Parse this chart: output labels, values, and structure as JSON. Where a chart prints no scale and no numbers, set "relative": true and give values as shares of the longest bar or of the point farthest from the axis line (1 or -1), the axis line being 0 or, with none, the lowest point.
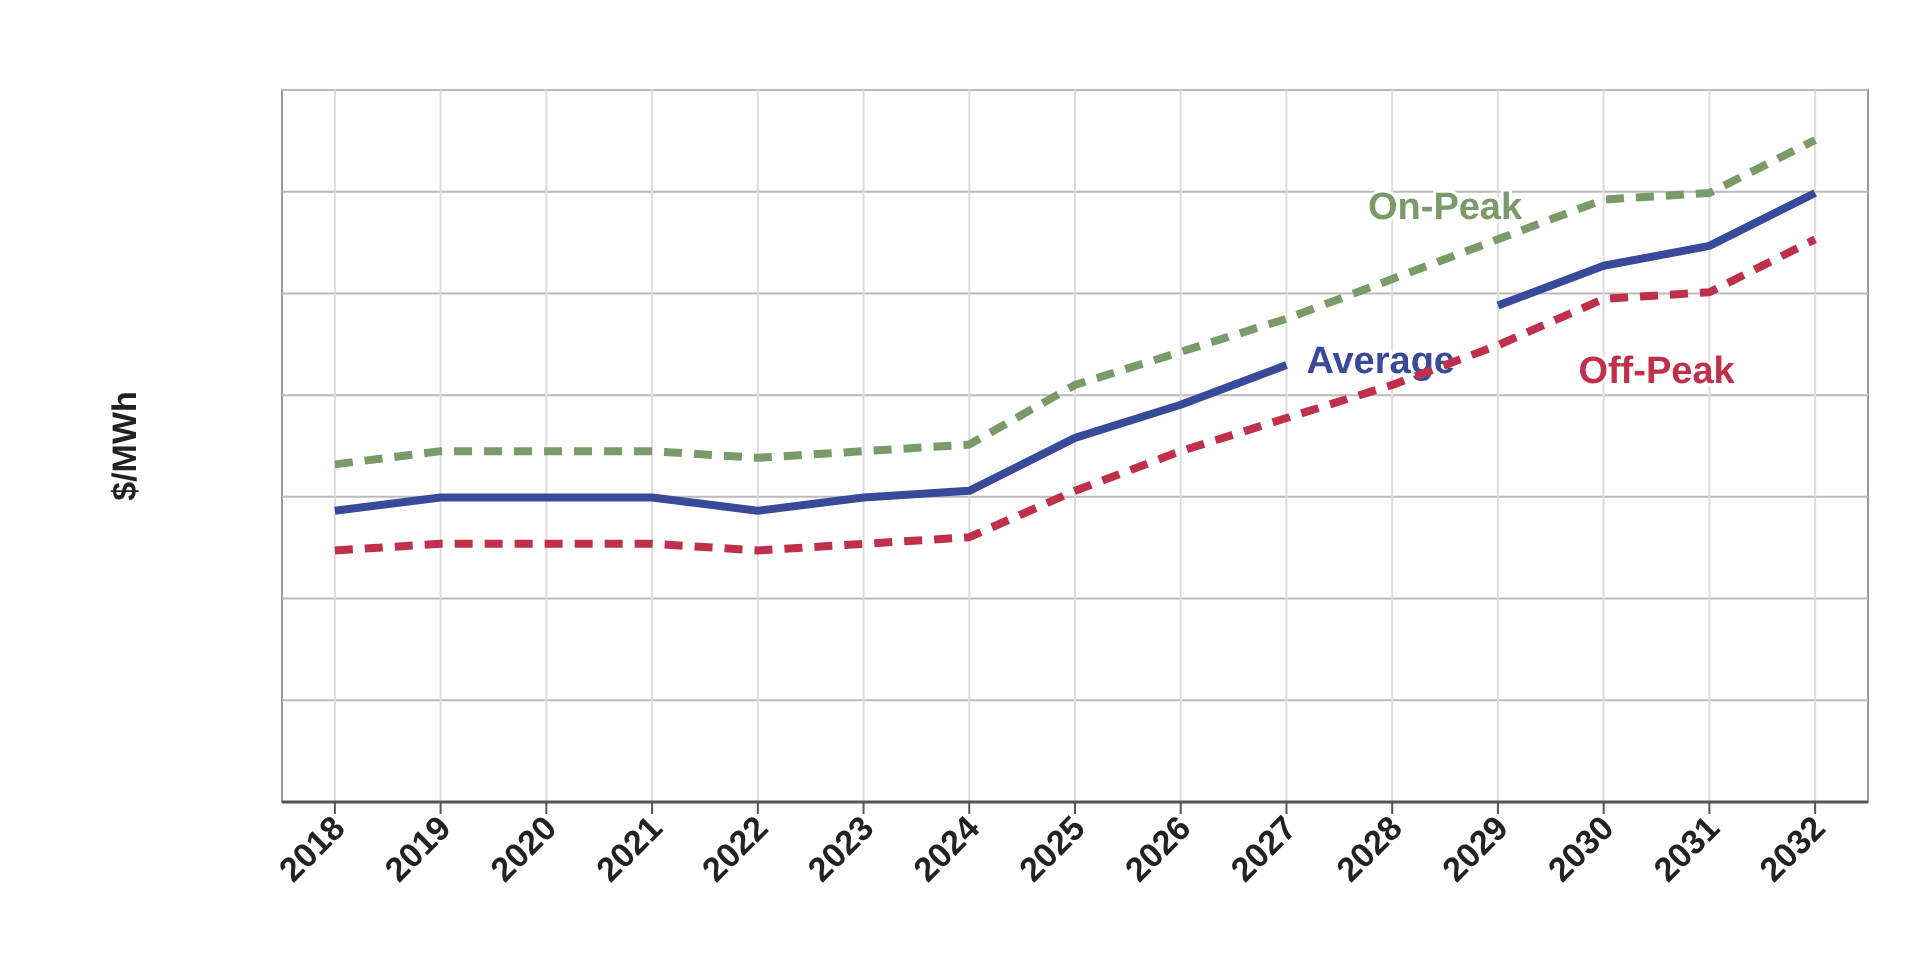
{
  "chart_data": {
    "type": "line",
    "relative": true,
    "ylabel": "$/MWh",
    "grid": true,
    "categories": [
      "2018",
      "2019",
      "2020",
      "2021",
      "2022",
      "2023",
      "2024",
      "2025",
      "2026",
      "2027",
      "2028",
      "2029",
      "2030",
      "2031",
      "2032"
    ],
    "series": [
      {
        "name": "On-Peak",
        "color": "#7a9a6a",
        "line_style": "dashed",
        "values": [
          0.51,
          0.53,
          0.53,
          0.53,
          0.52,
          0.53,
          0.54,
          0.63,
          0.68,
          0.73,
          0.79,
          0.85,
          0.91,
          0.92,
          1
        ]
      },
      {
        "name": "Average",
        "color": "#3a4a9a",
        "line_style": "solid",
        "values": [
          0.44,
          0.46,
          0.46,
          0.46,
          0.44,
          0.46,
          0.47,
          0.55,
          0.6,
          0.66,
          null,
          0.75,
          0.81,
          0.84,
          0.92
        ]
      },
      {
        "name": "Off-Peak",
        "color": "#c0304a",
        "line_style": "dashed",
        "values": [
          0.38,
          0.39,
          0.39,
          0.39,
          0.38,
          0.39,
          0.4,
          0.47,
          0.53,
          0.58,
          0.63,
          0.69,
          0.76,
          0.77,
          0.85
        ]
      }
    ]
  }
}
